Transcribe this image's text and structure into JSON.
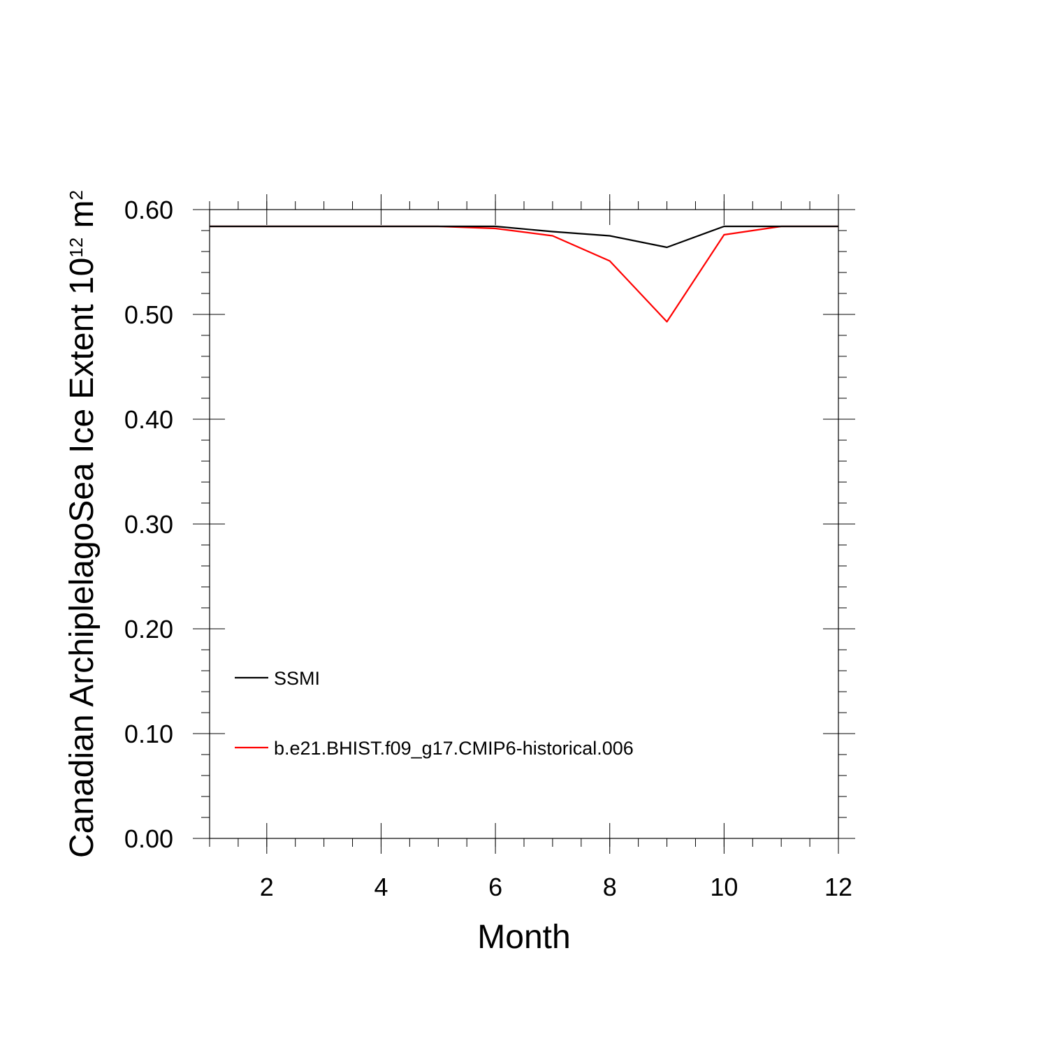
{
  "chart_data": {
    "type": "line",
    "xlabel": "Month",
    "ylabel": {
      "prefix": "Canadian ArchiplelagoSea Ice Extent 10",
      "exp1": "12",
      "unit": " m",
      "exp2": "2"
    },
    "xlim": [
      1,
      12
    ],
    "ylim": [
      0.0,
      0.6
    ],
    "x_ticks": [
      2,
      4,
      6,
      8,
      10,
      12
    ],
    "x_tick_labels": [
      "2",
      "4",
      "6",
      "8",
      "10",
      "12"
    ],
    "y_ticks": [
      0.0,
      0.1,
      0.2,
      0.3,
      0.4,
      0.5,
      0.6
    ],
    "y_tick_labels": [
      "0.00",
      "0.10",
      "0.20",
      "0.30",
      "0.40",
      "0.50",
      "0.60"
    ],
    "grid": false,
    "legend_position": "lower-left",
    "x": [
      1,
      2,
      3,
      4,
      5,
      6,
      7,
      8,
      9,
      10,
      11,
      12
    ],
    "series": [
      {
        "name": "SSMI",
        "color": "#000000",
        "values": [
          0.584,
          0.584,
          0.584,
          0.584,
          0.584,
          0.584,
          0.579,
          0.575,
          0.564,
          0.584,
          0.584,
          0.584
        ]
      },
      {
        "name": "b.e21.BHIST.f09_g17.CMIP6-historical.006",
        "color": "#ff0000",
        "values": [
          0.584,
          0.584,
          0.584,
          0.584,
          0.584,
          0.582,
          0.575,
          0.551,
          0.493,
          0.576,
          0.584,
          0.584
        ]
      }
    ]
  }
}
